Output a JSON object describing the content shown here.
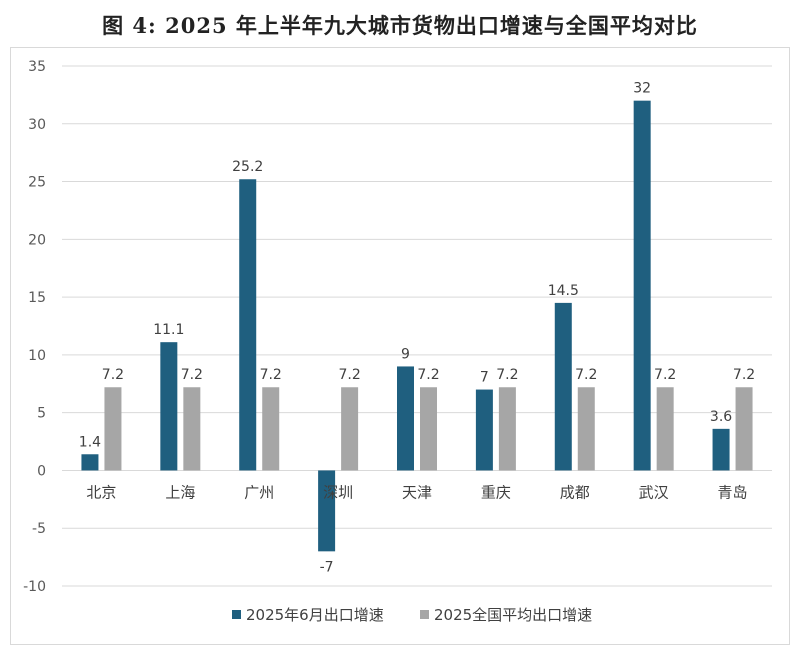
{
  "title": "图 4: 2025 年上半年九大城市货物出口增速与全国平均对比",
  "chart_data": {
    "type": "bar",
    "categories": [
      "北京",
      "上海",
      "广州",
      "深圳",
      "天津",
      "重庆",
      "成都",
      "武汉",
      "青岛"
    ],
    "series": [
      {
        "name": "2025年6月出口增速",
        "values": [
          1.4,
          11.1,
          25.2,
          -7,
          9,
          7,
          14.5,
          32,
          3.6
        ],
        "color": "#1f5f7f"
      },
      {
        "name": "2025全国平均出口增速",
        "values": [
          7.2,
          7.2,
          7.2,
          7.2,
          7.2,
          7.2,
          7.2,
          7.2,
          7.2
        ],
        "color": "#a6a6a6"
      }
    ],
    "data_labels": [
      [
        "1.4",
        "11.1",
        "25.2",
        "-7",
        "9",
        "7",
        "14.5",
        "32",
        "3.6"
      ],
      [
        "7.2",
        "7.2",
        "7.2",
        "7.2",
        "7.2",
        "7.2",
        "7.2",
        "7.2",
        "7.2"
      ]
    ],
    "yticks": [
      "35",
      "30",
      "25",
      "20",
      "15",
      "10",
      "5",
      "0",
      "-5",
      "-10"
    ],
    "ylim": [
      -10,
      35
    ],
    "grid": true,
    "legend_position": "bottom"
  }
}
